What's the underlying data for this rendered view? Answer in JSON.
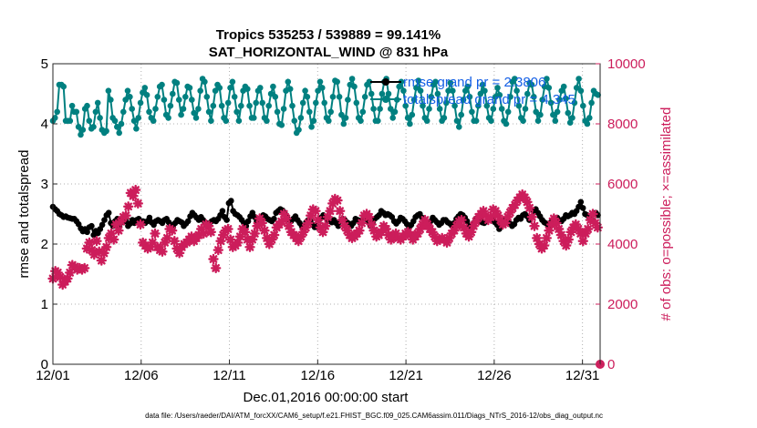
{
  "title_line1": "Tropics 535253 / 539889 = 99.141%",
  "title_line2": "SAT_HORIZONTAL_WIND @ 831 hPa",
  "xlabel": "Dec.01,2016 00:00:00 start",
  "ylabel": "rmse and totalspread",
  "ylabel_right": "# of obs: o=possible; ×=assimilated",
  "footer": "data file: /Users/raeder/DAI/ATM_forcXX/CAM6_setup/f.e21.FHIST_BGC.f09_025.CAM6assim.011/Diags_NTrS_2016-12/obs_diag_output.nc",
  "colors": {
    "rmse": "#000000",
    "spread": "#008080",
    "obs": "#cc1d5b",
    "legend_text": "#1560e6"
  },
  "chart_data": {
    "type": "line",
    "x_start_day": 1,
    "x_end_day": 32,
    "xlim": [
      1,
      32
    ],
    "ylim": [
      0,
      5
    ],
    "ylim_right": [
      0,
      10000
    ],
    "x_ticks": [
      {
        "label": "12/01",
        "day": 1
      },
      {
        "label": "12/06",
        "day": 6
      },
      {
        "label": "12/11",
        "day": 11
      },
      {
        "label": "12/16",
        "day": 16
      },
      {
        "label": "12/21",
        "day": 21
      },
      {
        "label": "12/26",
        "day": 26
      },
      {
        "label": "12/31",
        "day": 31
      }
    ],
    "y_ticks": [
      "0",
      "1",
      "2",
      "3",
      "4",
      "5"
    ],
    "y_ticks_right": [
      "0",
      "2000",
      "4000",
      "6000",
      "8000",
      "10000"
    ],
    "legend": [
      "rmse grand pr = 2.3806",
      "totalspread grand pr = 4.345"
    ],
    "series": [
      {
        "name": "rmse",
        "axis": "left",
        "values": [
          2.62,
          2.58,
          2.55,
          2.5,
          2.48,
          2.45,
          2.46,
          2.44,
          2.43,
          2.42,
          2.42,
          2.38,
          2.33,
          2.26,
          2.21,
          2.25,
          2.2,
          2.28,
          2.3,
          2.15,
          2.22,
          2.18,
          2.25,
          2.32,
          2.4,
          2.48,
          2.52,
          2.35,
          2.3,
          2.38,
          2.42,
          2.3,
          2.36,
          2.42,
          2.38,
          2.3,
          2.34,
          2.4,
          2.35,
          2.4,
          2.42,
          2.38,
          2.38,
          2.35,
          2.38,
          2.44,
          2.36,
          2.32,
          2.38,
          2.4,
          2.38,
          2.35,
          2.4,
          2.42,
          2.36,
          2.32,
          2.28,
          2.35,
          2.4,
          2.38,
          2.36,
          2.3,
          2.34,
          2.38,
          2.46,
          2.52,
          2.48,
          2.44,
          2.4,
          2.45,
          2.4,
          2.36,
          2.3,
          2.35,
          2.38,
          2.4,
          2.38,
          2.42,
          2.48,
          2.55,
          2.45,
          2.4,
          2.68,
          2.72,
          2.55,
          2.5,
          2.48,
          2.45,
          2.4,
          2.35,
          2.3,
          2.38,
          2.46,
          2.52,
          2.45,
          2.38,
          2.35,
          2.42,
          2.48,
          2.46,
          2.42,
          2.4,
          2.38,
          2.42,
          2.52,
          2.55,
          2.58,
          2.56,
          2.52,
          2.45,
          2.4,
          2.38,
          2.42,
          2.46,
          2.4,
          2.35,
          2.3,
          2.28,
          2.36,
          2.4,
          2.38,
          2.32,
          2.28,
          2.3,
          2.4,
          2.44,
          2.48,
          2.45,
          2.4,
          2.38,
          2.36,
          2.4,
          2.35,
          2.3,
          2.38,
          2.42,
          2.4,
          2.36,
          2.34,
          2.3,
          2.35,
          2.42,
          2.4,
          2.36,
          2.4,
          2.45,
          2.42,
          2.36,
          2.3,
          2.36,
          2.42,
          2.45,
          2.48,
          2.55,
          2.52,
          2.48,
          2.5,
          2.48,
          2.45,
          2.38,
          2.34,
          2.38,
          2.44,
          2.42,
          2.38,
          2.33,
          2.28,
          2.32,
          2.38,
          2.45,
          2.48,
          2.5,
          2.44,
          2.4,
          2.36,
          2.32,
          2.38,
          2.44,
          2.4,
          2.36,
          2.32,
          2.35,
          2.4,
          2.4,
          2.36,
          2.34,
          2.3,
          2.35,
          2.42,
          2.46,
          2.5,
          2.48,
          2.44,
          2.38,
          2.3,
          2.28,
          2.35,
          2.42,
          2.44,
          2.4,
          2.36,
          2.35,
          2.38,
          2.42,
          2.44,
          2.4,
          2.36,
          2.32,
          2.25,
          2.3,
          2.36,
          2.4,
          2.38,
          2.34,
          2.3,
          2.33,
          2.4,
          2.44,
          2.42,
          2.48,
          2.5,
          2.46,
          2.4,
          2.45,
          2.55,
          2.58,
          2.52,
          2.46,
          2.4,
          2.36,
          2.34,
          2.3,
          2.36,
          2.4,
          2.42,
          2.44,
          2.4,
          2.38,
          2.42,
          2.48,
          2.46,
          2.48,
          2.52,
          2.5,
          2.55,
          2.62,
          2.7,
          2.6,
          2.5,
          2.48,
          2.45,
          2.42,
          2.5,
          2.52,
          2.48
        ],
        "color": "#000000"
      },
      {
        "name": "totalspread",
        "axis": "left",
        "values": [
          4.05,
          4.1,
          4.2,
          4.65,
          4.65,
          4.62,
          4.05,
          4.05,
          4.05,
          4.3,
          4.2,
          4.2,
          3.95,
          3.82,
          3.9,
          4.25,
          4.3,
          4.05,
          3.92,
          3.95,
          4.2,
          4.35,
          4.1,
          3.9,
          3.85,
          3.88,
          4.55,
          4.4,
          4.1,
          4.05,
          3.95,
          3.85,
          4.0,
          4.2,
          4.4,
          4.55,
          4.45,
          4.25,
          4.05,
          3.92,
          4.1,
          4.35,
          4.52,
          4.6,
          4.48,
          4.2,
          4.1,
          4.05,
          4.25,
          4.45,
          4.62,
          4.65,
          4.4,
          4.15,
          4.1,
          4.3,
          4.5,
          4.7,
          4.68,
          4.4,
          4.15,
          4.25,
          4.45,
          4.62,
          4.6,
          4.4,
          4.18,
          4.1,
          4.25,
          4.55,
          4.75,
          4.7,
          4.45,
          4.2,
          4.05,
          4.3,
          4.55,
          4.65,
          4.6,
          4.3,
          4.1,
          4.05,
          4.35,
          4.6,
          4.7,
          4.45,
          4.2,
          4.05,
          4.3,
          4.55,
          4.62,
          4.58,
          4.3,
          4.1,
          4.1,
          4.35,
          4.55,
          4.6,
          4.35,
          4.1,
          4.05,
          4.3,
          4.5,
          4.62,
          4.45,
          4.2,
          4.0,
          3.98,
          4.25,
          4.55,
          4.7,
          4.58,
          4.3,
          4.05,
          3.85,
          3.9,
          4.1,
          4.35,
          4.55,
          4.45,
          4.2,
          3.95,
          4.05,
          4.35,
          4.55,
          4.7,
          4.6,
          4.35,
          4.1,
          4.05,
          4.2,
          4.45,
          4.72,
          4.7,
          4.45,
          4.15,
          4.0,
          4.1,
          4.4,
          4.65,
          4.75,
          4.62,
          4.35,
          4.1,
          4.05,
          4.2,
          4.45,
          4.65,
          4.7,
          4.5,
          4.25,
          4.05,
          4.05,
          4.25,
          4.5,
          4.7,
          4.75,
          4.5,
          4.25,
          4.1,
          4.2,
          4.4,
          4.62,
          4.7,
          4.55,
          4.3,
          4.1,
          4.0,
          4.15,
          4.4,
          4.6,
          4.72,
          4.55,
          4.3,
          4.1,
          4.05,
          4.25,
          4.45,
          4.65,
          4.7,
          4.5,
          4.25,
          4.05,
          4.1,
          4.35,
          4.55,
          4.68,
          4.55,
          4.3,
          4.05,
          3.95,
          4.15,
          4.4,
          4.55,
          4.62,
          4.45,
          4.2,
          4.05,
          4.05,
          4.3,
          4.5,
          4.65,
          4.55,
          4.3,
          4.1,
          4.05,
          4.25,
          4.45,
          4.6,
          4.48,
          4.25,
          4.05,
          4.0,
          4.2,
          4.45,
          4.7,
          4.75,
          4.55,
          4.3,
          4.1,
          4.05,
          4.25,
          4.5,
          4.68,
          4.65,
          4.45,
          4.2,
          4.05,
          4.15,
          4.4,
          4.62,
          4.75,
          4.6,
          4.35,
          4.15,
          4.05,
          4.2,
          4.4,
          4.55,
          4.62,
          4.42,
          4.18,
          4.02,
          4.1,
          4.35,
          4.6,
          4.75,
          4.55,
          4.3,
          4.05,
          4.0,
          4.1,
          4.35,
          4.55,
          4.5,
          4.48
        ],
        "color": "#008080"
      },
      {
        "name": "obs_assimilated",
        "axis": "right",
        "marker": "star",
        "values": [
          2850,
          3100,
          3050,
          2900,
          2650,
          2750,
          2850,
          3050,
          3300,
          3250,
          3150,
          3200,
          3150,
          3200,
          3850,
          4050,
          3800,
          3650,
          4100,
          3750,
          3450,
          3700,
          3900,
          4200,
          4350,
          4150,
          4650,
          4450,
          4750,
          4900,
          4950,
          5250,
          5700,
          5600,
          5800,
          5350,
          4650,
          4050,
          3950,
          3850,
          3900,
          4050,
          4350,
          3900,
          3800,
          3750,
          4050,
          4200,
          4500,
          4450,
          4100,
          3850,
          3700,
          3900,
          4000,
          4050,
          4150,
          4250,
          4100,
          4200,
          4300,
          4500,
          4350,
          4650,
          4600,
          4400,
          3500,
          3200,
          3800,
          4100,
          4300,
          4450,
          4500,
          4150,
          3900,
          3950,
          4050,
          4250,
          4500,
          4400,
          4150,
          3900,
          4150,
          4350,
          4600,
          4850,
          4700,
          4450,
          4200,
          4000,
          4150,
          4300,
          4550,
          4650,
          4750,
          5000,
          4850,
          4600,
          4400,
          4300,
          4200,
          4100,
          4250,
          4400,
          4550,
          4700,
          4950,
          5150,
          5100,
          4800,
          4550,
          4400,
          4600,
          4900,
          5100,
          5350,
          5500,
          5450,
          5100,
          4800,
          4600,
          4450,
          4300,
          4200,
          4250,
          4350,
          4450,
          4700,
          4950,
          5000,
          4900,
          4650,
          4450,
          4250,
          4300,
          4400,
          4600,
          4500,
          4300,
          4150,
          4250,
          4350,
          4200,
          4150,
          4250,
          4350,
          4400,
          4300,
          4150,
          4250,
          4350,
          4500,
          4650,
          4800,
          4650,
          4500,
          4400,
          4250,
          4100,
          4150,
          4200,
          4150,
          4050,
          4200,
          4350,
          4450,
          4600,
          4750,
          4800,
          4550,
          4350,
          4250,
          4400,
          4600,
          4750,
          4900,
          5000,
          5100,
          4950,
          4800,
          4900,
          5150,
          5100,
          4950,
          4800,
          4650,
          4700,
          4900,
          5050,
          5200,
          5300,
          5450,
          5550,
          5650,
          5550,
          5400,
          5200,
          4900,
          4600,
          4200,
          4000,
          3850,
          3950,
          4200,
          4450,
          4650,
          4850,
          4700,
          4500,
          4300,
          4100,
          3950,
          4150,
          4400,
          4550,
          4650,
          4500,
          4350,
          4100,
          4350,
          4500,
          4800,
          5000,
          4700,
          4550
        ],
        "color": "#cc1d5b"
      }
    ],
    "obs_possible_end": {
      "day": 32,
      "value": 0
    }
  }
}
